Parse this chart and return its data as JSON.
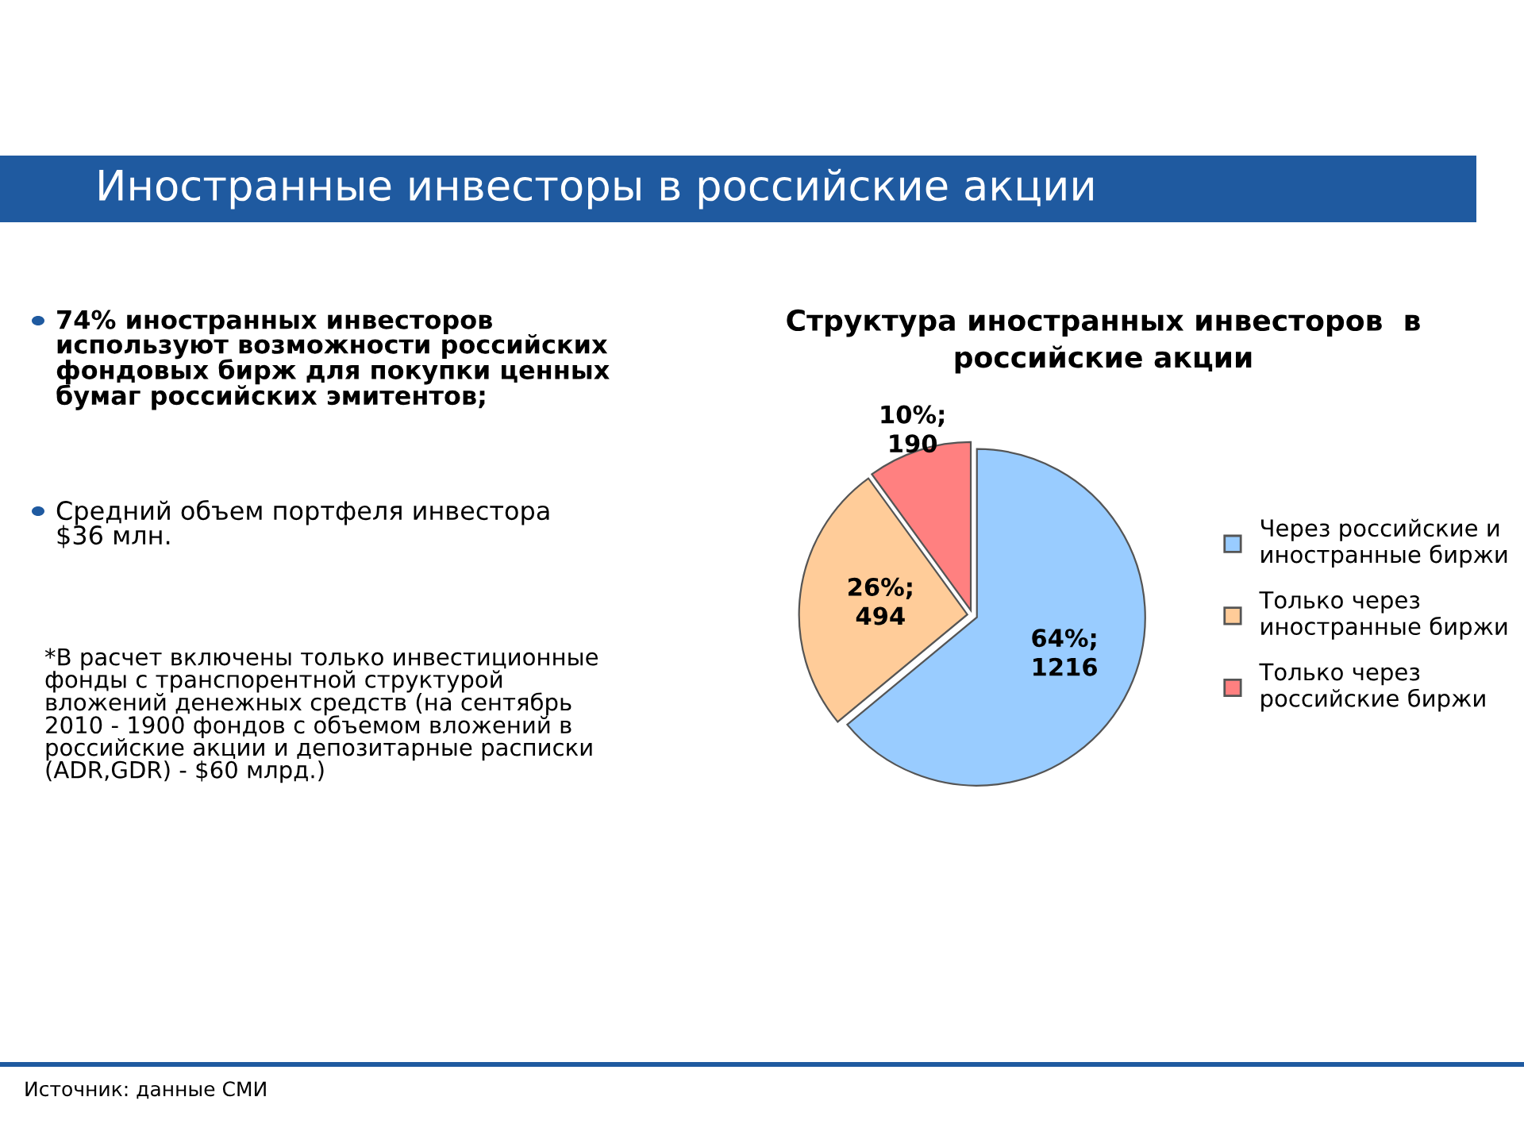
{
  "chart_data": {
    "type": "pie",
    "title": "Иностранные инвесторы в российские акции",
    "subtitle": "Структура иностранных инвесторов  в\nроссийские акции",
    "categories": [
      "Через российские и\nиностранные биржи",
      "Только через\nиностранные биржи",
      "Только через\nроссийские биржи"
    ],
    "values": [
      1216,
      494,
      190
    ],
    "colors": [
      "#99ccff",
      "#ffcc99",
      "#ff8080"
    ],
    "value_labels": [
      "64%;\n1216",
      "26%;\n494",
      "10%;\n190"
    ],
    "legend": "right",
    "annotations": [
      "74% иностранных инвесторов\nиспользуют возможности российских\nфондовых бирж для покупки ценных\nбумаг российских эмитентов;",
      "Средний объем портфеля инвестора\n$36 млн.",
      "*В расчет включены только инвестиционные\nфонды с транспорентной структурой\nвложений денежных средств (на сентябрь\n2010 - 1900 фондов с объемом вложений в\nроссийские акции и депозитарные расписки\n(ADR,GDR) - $60 млрд.)",
      "Источник: данные СМИ"
    ]
  }
}
